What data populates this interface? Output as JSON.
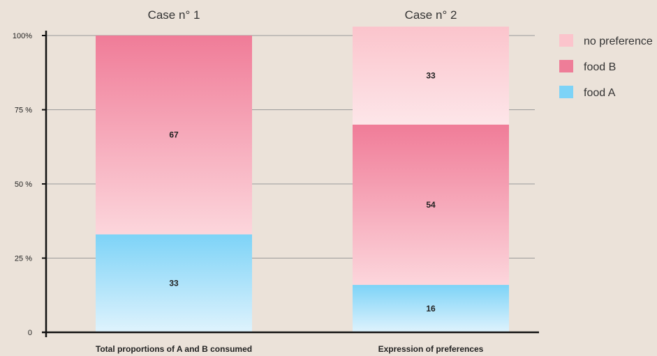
{
  "chart_data": {
    "type": "bar",
    "stacked": true,
    "case_titles": [
      "Case n° 1",
      "Case n° 2"
    ],
    "categories": [
      "Total proportions of A and B consumed",
      "Expression of preferences"
    ],
    "ylim": [
      0,
      100
    ],
    "yticks": [
      {
        "value": 0,
        "label": "0"
      },
      {
        "value": 25,
        "label": "25 %"
      },
      {
        "value": 50,
        "label": "50 %"
      },
      {
        "value": 75,
        "label": "75 %"
      },
      {
        "value": 100,
        "label": "100%"
      }
    ],
    "series": [
      {
        "name": "food A",
        "values": [
          33,
          16
        ],
        "labels": [
          "33",
          "16"
        ],
        "color_top": "#7dd3f7",
        "color_bottom": "#dff3fd"
      },
      {
        "name": "food B",
        "values": [
          67,
          54
        ],
        "labels": [
          "67",
          "54"
        ],
        "color_top": "#f07c98",
        "color_bottom": "#fcd6dc"
      },
      {
        "name": "no preference",
        "values": [
          0,
          33
        ],
        "labels": [
          "",
          "33"
        ],
        "color_top": "#fbc4cc",
        "color_bottom": "#fde6e9"
      }
    ],
    "legend": {
      "position": "top-right",
      "items": [
        {
          "label": "no preference",
          "color": "#fbc4cc"
        },
        {
          "label": "food B",
          "color": "#ee7d98"
        },
        {
          "label": "food A",
          "color": "#7dd3f7"
        }
      ]
    },
    "grid": true
  }
}
